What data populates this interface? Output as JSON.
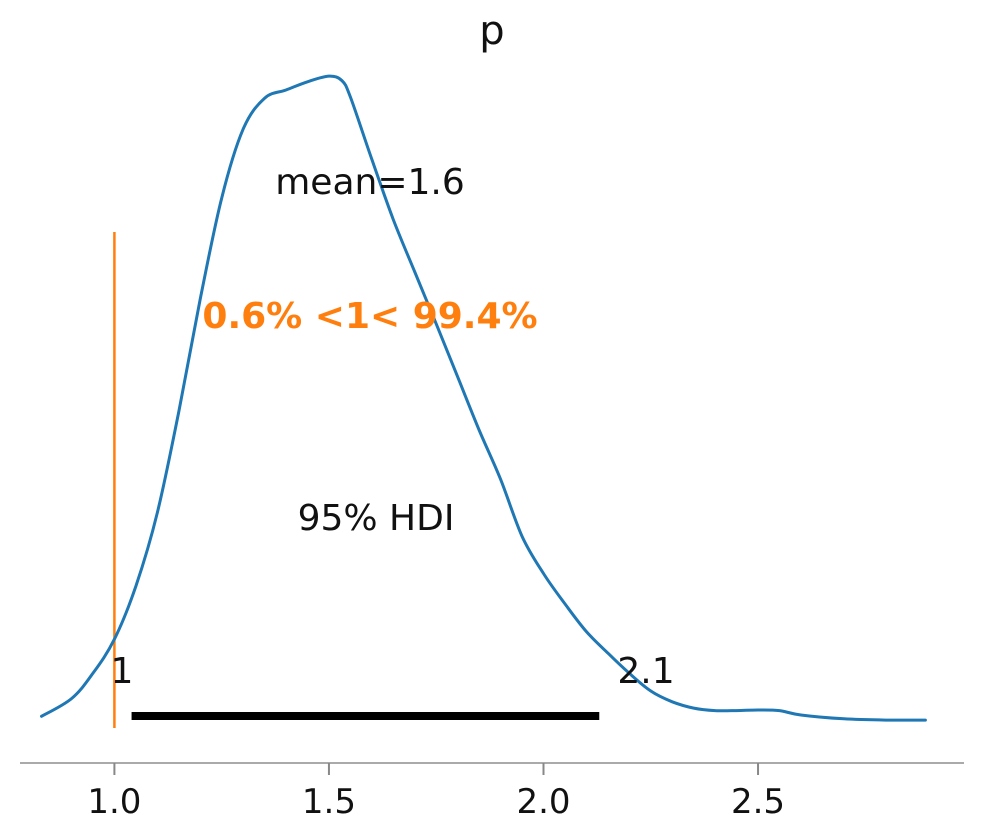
{
  "chart_data": {
    "type": "area",
    "title": "p",
    "xlabel": "",
    "ylabel": "",
    "xlim": [
      0.78,
      2.98
    ],
    "ylim": [
      0,
      1.0
    ],
    "x_ticks": [
      1.0,
      1.5,
      2.0,
      2.5
    ],
    "x_tick_labels": [
      "1.0",
      "1.5",
      "2.0",
      "2.5"
    ],
    "grid": false,
    "series": [
      {
        "color": "#1f77b4",
        "x": [
          0.83,
          0.9,
          0.95,
          1.0,
          1.05,
          1.1,
          1.15,
          1.2,
          1.25,
          1.3,
          1.35,
          1.4,
          1.45,
          1.5,
          1.53,
          1.55,
          1.6,
          1.65,
          1.7,
          1.75,
          1.8,
          1.85,
          1.9,
          1.95,
          2.0,
          2.05,
          2.1,
          2.15,
          2.2,
          2.25,
          2.3,
          2.35,
          2.4,
          2.45,
          2.5,
          2.55,
          2.6,
          2.7,
          2.8,
          2.89
        ],
        "y": [
          0.009,
          0.037,
          0.077,
          0.131,
          0.215,
          0.331,
          0.491,
          0.669,
          0.829,
          0.938,
          0.987,
          1.0,
          1.013,
          1.022,
          1.015,
          0.989,
          0.89,
          0.795,
          0.712,
          0.63,
          0.546,
          0.462,
          0.384,
          0.294,
          0.235,
          0.187,
          0.143,
          0.109,
          0.077,
          0.049,
          0.032,
          0.022,
          0.018,
          0.018,
          0.019,
          0.018,
          0.011,
          0.005,
          0.003,
          0.003
        ]
      }
    ],
    "annotations": {
      "mean_label": "mean=1.6",
      "mean": 1.6,
      "ref_value": 1.0,
      "ref_label": "0.6% <1< 99.4%",
      "ref_color": "#ff7f0e",
      "hdi_label": "95% HDI",
      "hdi_low": 1.04,
      "hdi_high": 2.13,
      "hdi_low_label": "1",
      "hdi_high_label": "2.1",
      "hdi_color": "#000000"
    }
  }
}
